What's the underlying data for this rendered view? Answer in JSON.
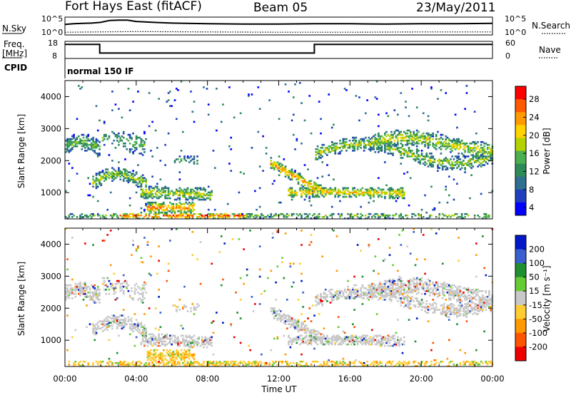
{
  "header": {
    "station": "Fort Hays East (fitACF)",
    "beam": "Beam 05",
    "date": "23/May/2011"
  },
  "left_labels": {
    "nsky": "N.Sky",
    "freq_line1": "Freq.",
    "freq_line2": "[MHz]",
    "cpid": "CPID"
  },
  "right_labels": {
    "nsearch": "N.Search",
    "nave": "Nave"
  },
  "cpid_text": "normal 150 IF",
  "chart_data": [
    {
      "type": "line",
      "panel": "noise",
      "y_ticks_left": [
        "10^5",
        "10^0"
      ],
      "y_ticks_right": [
        "10^5",
        "10^0"
      ],
      "series": [
        {
          "name": "N.Sky",
          "style": "solid",
          "x": [
            0,
            0.5,
            1.0,
            1.5,
            2.0,
            2.5,
            3.0,
            3.5,
            4.0,
            5.0,
            6.0,
            8.0,
            10.0,
            12.0,
            14.0,
            16.0,
            18.0,
            20.0,
            22.0,
            24.0
          ],
          "y": [
            3.0,
            3.2,
            3.3,
            3.4,
            3.6,
            4.2,
            4.3,
            4.3,
            3.9,
            3.6,
            3.4,
            3.2,
            3.1,
            3.1,
            3.2,
            3.2,
            3.1,
            3.2,
            3.2,
            3.3
          ]
        },
        {
          "name": "N.Search",
          "style": "dotted",
          "x": [
            0,
            4,
            8,
            12,
            16,
            20,
            24
          ],
          "y": [
            0.6,
            0.8,
            0.7,
            0.6,
            0.6,
            0.7,
            0.7
          ]
        }
      ]
    },
    {
      "type": "line",
      "panel": "frequency",
      "y_ticks_left": [
        "18",
        "8"
      ],
      "y_ticks_right": [
        "60",
        "0"
      ],
      "series": [
        {
          "name": "Freq.",
          "style": "solid",
          "x": [
            0,
            1.95,
            1.95,
            14.0,
            14.0,
            24.0
          ],
          "y": [
            16.5,
            16.5,
            11.0,
            11.0,
            16.5,
            16.5
          ]
        },
        {
          "name": "Nave",
          "style": "dotted",
          "x": [
            0,
            24
          ],
          "y": [
            57,
            57
          ]
        }
      ]
    },
    {
      "type": "heatmap",
      "panel": "power",
      "ylabel": "Slant Range [km]",
      "ylim": [
        180,
        4500
      ],
      "y_ticks": [
        1000,
        2000,
        3000,
        4000
      ],
      "colorbar_label": "Power [dB]",
      "colorbar_ticks": [
        "28",
        "24",
        "20",
        "16",
        "12",
        "8",
        "4"
      ],
      "colorbar_colors": [
        "#ff0000",
        "#ff5a00",
        "#ff9a00",
        "#ffd200",
        "#b4d200",
        "#4caf50",
        "#2e8b57",
        "#2f6f8f",
        "#1f3fbf",
        "#0000ff"
      ]
    },
    {
      "type": "heatmap",
      "panel": "velocity",
      "ylabel": "Slant Range [km]",
      "xlabel": "Time UT",
      "ylim": [
        180,
        4500
      ],
      "xlim": [
        0,
        24
      ],
      "y_ticks": [
        1000,
        2000,
        3000,
        4000
      ],
      "x_ticks": [
        "00:00",
        "04:00",
        "08:00",
        "12:00",
        "16:00",
        "20:00",
        "00:00"
      ],
      "colorbar_label": "Velocity [m s⁻¹]",
      "colorbar_ticks": [
        "200",
        "100",
        "50",
        "15",
        "-15",
        "-50",
        "-100",
        "-200"
      ],
      "colorbar_colors": [
        "#0018c8",
        "#3a5fd0",
        "#1f8f2f",
        "#66cc33",
        "#c8c8c8",
        "#ffcc33",
        "#ff9900",
        "#ff5500",
        "#ee0000"
      ]
    }
  ]
}
